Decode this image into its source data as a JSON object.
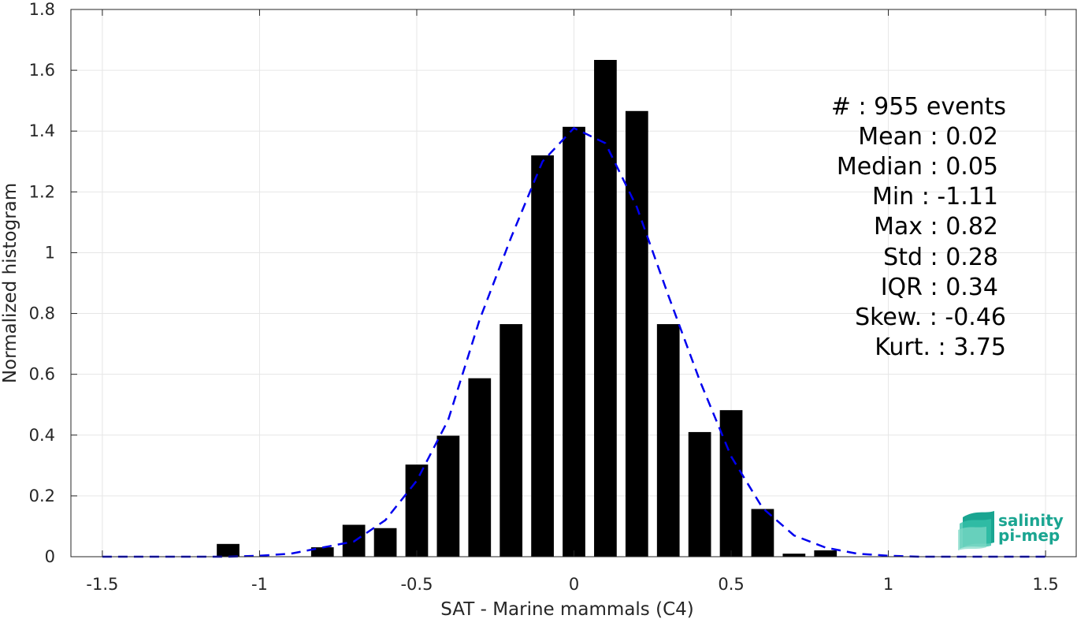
{
  "chart_data": {
    "type": "bar",
    "xlabel": "SAT - Marine mammals (C4)",
    "ylabel": "Normalized histogram",
    "xlim": [
      -1.6,
      1.6
    ],
    "ylim": [
      0,
      1.8
    ],
    "xticks": [
      -1.5,
      -1,
      -0.5,
      0,
      0.5,
      1,
      1.5
    ],
    "xtick_labels": [
      "-1.5",
      "-1",
      "-0.5",
      "0",
      "0.5",
      "1",
      "1.5"
    ],
    "yticks": [
      0,
      0.2,
      0.4,
      0.6,
      0.8,
      1,
      1.2,
      1.4,
      1.6,
      1.8
    ],
    "ytick_labels": [
      "0",
      "0.2",
      "0.4",
      "0.6",
      "0.8",
      "1",
      "1.2",
      "1.4",
      "1.6",
      "1.8"
    ],
    "grid": true,
    "bar_color": "#000000",
    "bars": {
      "x": [
        -1.1,
        -0.8,
        -0.7,
        -0.6,
        -0.5,
        -0.4,
        -0.3,
        -0.2,
        -0.1,
        0.0,
        0.1,
        0.2,
        0.3,
        0.4,
        0.5,
        0.6,
        0.7,
        0.8
      ],
      "values": [
        0.042,
        0.031,
        0.105,
        0.094,
        0.303,
        0.398,
        0.587,
        0.765,
        1.32,
        1.414,
        1.634,
        1.466,
        0.765,
        0.41,
        0.482,
        0.157,
        0.01,
        0.021
      ]
    },
    "fit": {
      "style": "dashed",
      "color": "#0000ee",
      "x": [
        -1.5,
        -1.4,
        -1.3,
        -1.2,
        -1.1,
        -1.0,
        -0.9,
        -0.8,
        -0.7,
        -0.6,
        -0.5,
        -0.4,
        -0.3,
        -0.2,
        -0.1,
        0.0,
        0.1,
        0.2,
        0.3,
        0.4,
        0.5,
        0.6,
        0.7,
        0.8,
        0.9,
        1.0,
        1.1,
        1.2,
        1.3,
        1.4,
        1.5
      ],
      "y": [
        0.0,
        0.0,
        0.0,
        0.0,
        0.0,
        0.003,
        0.01,
        0.03,
        0.05,
        0.12,
        0.25,
        0.45,
        0.78,
        1.05,
        1.3,
        1.41,
        1.36,
        1.15,
        0.86,
        0.58,
        0.33,
        0.16,
        0.07,
        0.03,
        0.01,
        0.003,
        0.0,
        0.0,
        0.0,
        0.0,
        0.0
      ]
    },
    "stats": [
      "#  : 955 events",
      "Mean : 0.02",
      "Median : 0.05",
      "Min : -1.11",
      "Max : 0.82",
      "Std : 0.28",
      "IQR : 0.34",
      "Skew. : -0.46",
      "Kurt. : 3.75"
    ]
  },
  "logo": {
    "line1": "salinity",
    "line2": "pi-mep",
    "color": "#1aa591"
  }
}
